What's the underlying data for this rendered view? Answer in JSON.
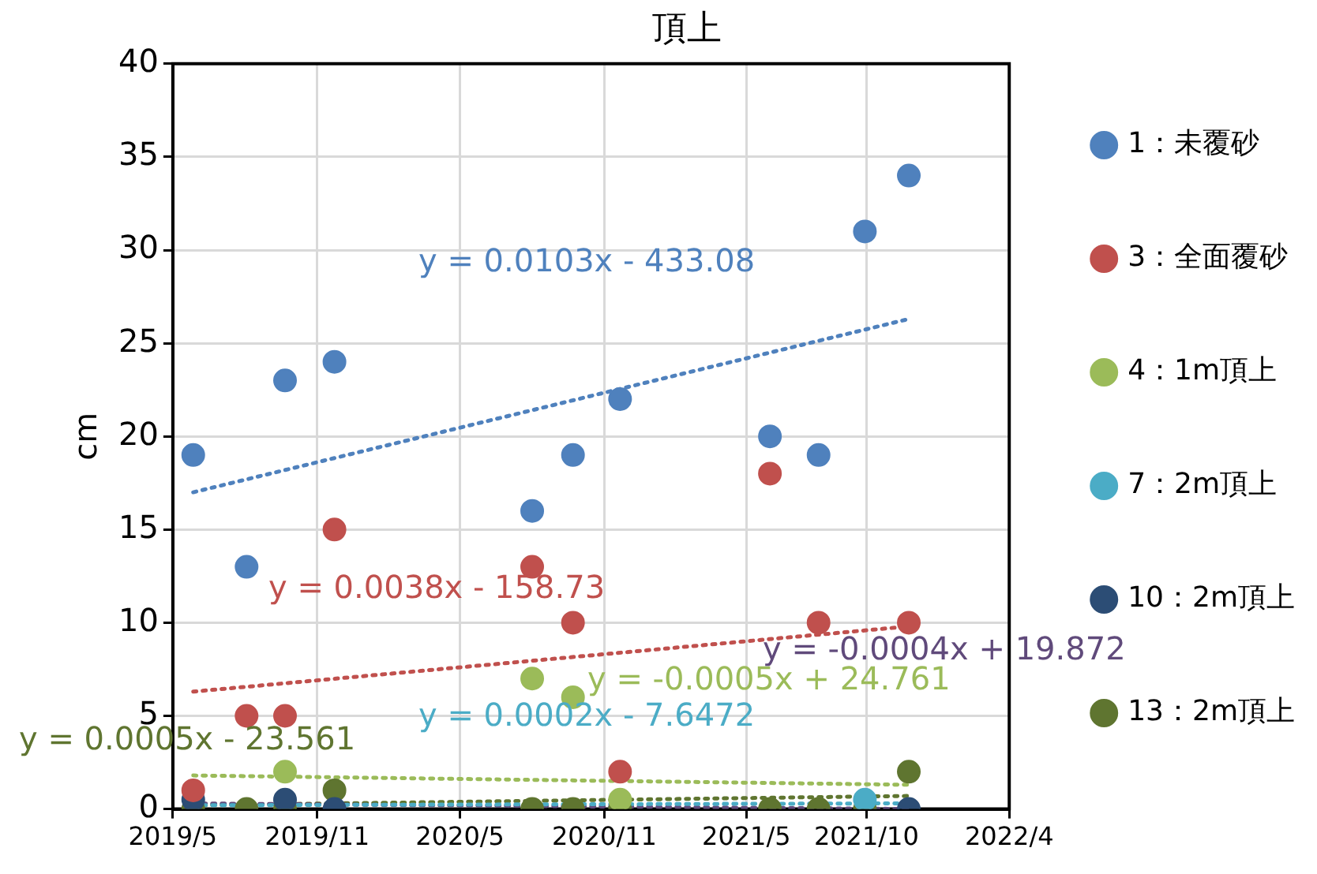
{
  "chart_data": {
    "type": "scatter",
    "title": "頂上",
    "ylabel": "cm",
    "x": [
      "2019-05-27",
      "2019-08-03",
      "2019-09-21",
      "2019-11-23",
      "2020-08-01",
      "2020-09-22",
      "2020-11-21",
      "2021-05-31",
      "2021-08-01",
      "2021-09-29",
      "2021-11-24"
    ],
    "series": [
      {
        "name": "1：未覆砂",
        "color": "#4f81bd",
        "values": [
          19,
          13,
          23,
          24,
          16,
          19,
          22,
          20,
          19,
          31,
          34
        ]
      },
      {
        "name": "3：全面覆砂",
        "color": "#c0504d",
        "values": [
          1,
          5,
          5,
          15,
          13,
          10,
          2,
          18,
          10,
          null,
          10
        ]
      },
      {
        "name": "4：1m頂上",
        "color": "#9bbb59",
        "values": [
          null,
          null,
          2,
          null,
          7,
          6,
          0.5,
          null,
          null,
          null,
          null
        ]
      },
      {
        "name": "7：2m頂上",
        "color": "#4bacc6",
        "values": [
          null,
          null,
          null,
          null,
          null,
          null,
          null,
          null,
          null,
          0.5,
          null
        ]
      },
      {
        "name": "10：2m頂上",
        "color": "#2c4d75",
        "values": [
          0.5,
          null,
          0.5,
          0,
          null,
          null,
          null,
          null,
          null,
          null,
          0
        ]
      },
      {
        "name": "13：2m頂上",
        "color": "#5f7530",
        "values": [
          0,
          0,
          0,
          1,
          0,
          0,
          0,
          0,
          0,
          0,
          2
        ]
      },
      {
        "type": "line",
        "color": "#4f81bd",
        "x": [
          "2019-05-27",
          "2021-11-24"
        ],
        "values": [
          17,
          26.3
        ],
        "line_style": "dotted",
        "marker": "none"
      },
      {
        "type": "line",
        "color": "#c0504d",
        "x": [
          "2019-05-27",
          "2021-11-24"
        ],
        "values": [
          6.3,
          9.8
        ],
        "line_style": "dotted",
        "marker": "none"
      },
      {
        "type": "line",
        "color": "#9bbb59",
        "x": [
          "2019-05-27",
          "2021-11-24"
        ],
        "values": [
          1.8,
          1.3
        ],
        "line_style": "dotted",
        "marker": "none"
      },
      {
        "type": "line",
        "color": "#4bacc6",
        "x": [
          "2019-05-27",
          "2021-11-24"
        ],
        "values": [
          0.2,
          0.3
        ],
        "line_style": "dotted",
        "marker": "none"
      },
      {
        "type": "line",
        "color": "#604a7b",
        "x": [
          "2019-05-27",
          "2021-11-24"
        ],
        "values": [
          0.3,
          0
        ],
        "line_style": "dotted",
        "marker": "none"
      },
      {
        "type": "line",
        "color": "#5f7530",
        "x": [
          "2019-05-27",
          "2021-11-24"
        ],
        "values": [
          0.2,
          0.7
        ],
        "line_style": "dotted",
        "marker": "none"
      }
    ],
    "annotations": [
      "y = 0.0103x - 433.08",
      "y = 0.0038x - 158.73",
      "y = -0.0005x + 24.761",
      "y = 0.0002x - 7.6472",
      "y = -0.0004x + 19.872",
      "y = 0.0005x - 23.561"
    ],
    "xlim": [
      "2019-05-01",
      "2022-04-01"
    ],
    "xticks": [
      {
        "value": "2019-05-01",
        "label": "2019/5"
      },
      {
        "value": "2019-11-01",
        "label": "2019/11"
      },
      {
        "value": "2020-05-01",
        "label": "2020/5"
      },
      {
        "value": "2020-11-01",
        "label": "2020/11"
      },
      {
        "value": "2021-05-01",
        "label": "2021/5"
      },
      {
        "value": "2021-10-01",
        "label": "2021/10"
      },
      {
        "value": "2022-04-01",
        "label": "2022/4"
      }
    ],
    "ylim": [
      0,
      40
    ],
    "yticks": [
      0,
      5,
      10,
      15,
      20,
      25,
      30,
      35,
      40
    ],
    "grid": true,
    "legend": "right",
    "marker": "circle"
  }
}
